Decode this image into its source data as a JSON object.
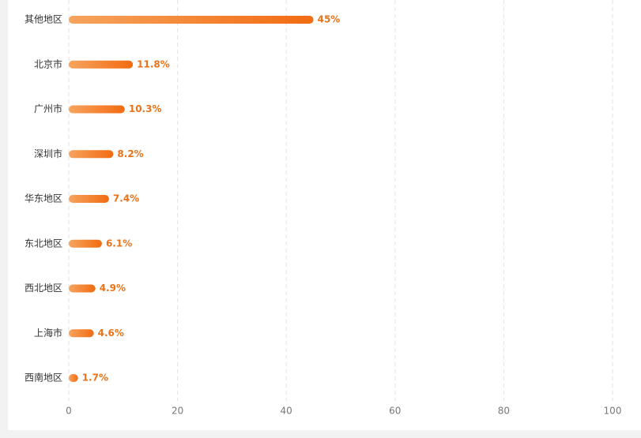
{
  "chart_data": {
    "type": "bar",
    "orientation": "horizontal",
    "categories": [
      "其他地区",
      "北京市",
      "广州市",
      "深圳市",
      "华东地区",
      "东北地区",
      "西北地区",
      "上海市",
      "西南地区"
    ],
    "values": [
      45,
      11.8,
      10.3,
      8.2,
      7.4,
      6.1,
      4.9,
      4.6,
      1.7
    ],
    "value_labels": [
      "45%",
      "11.8%",
      "10.3%",
      "8.2%",
      "7.4%",
      "6.1%",
      "4.9%",
      "4.6%",
      "1.7%"
    ],
    "color": "#f26b12",
    "xlim": [
      0,
      100
    ],
    "xticks": [
      0,
      20,
      40,
      60,
      80,
      100
    ],
    "grid": true
  }
}
